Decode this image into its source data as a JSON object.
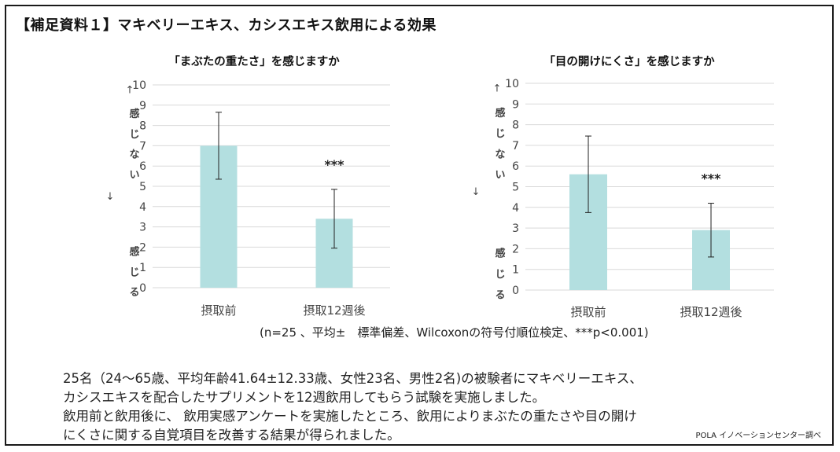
{
  "title": "【補足資料１】マキベリーエキス、カシスエキス飲用による効果",
  "chart_data": [
    {
      "type": "bar",
      "title": "「まぶたの重たさ」を感じますか",
      "categories": [
        "摂取前",
        "摂取12週後"
      ],
      "values": [
        7.0,
        3.4
      ],
      "error": [
        1.65,
        1.45
      ],
      "significance": [
        "",
        "***"
      ],
      "ylim": [
        0,
        10
      ],
      "yticks": [
        "0",
        "1",
        "2",
        "3",
        "4",
        "5",
        "6",
        "7",
        "8",
        "9",
        "10"
      ],
      "ylabel_top": [
        "↑",
        "感",
        "じ",
        "な",
        "い",
        "↓"
      ],
      "ylabel_bottom": [
        "感",
        "じ",
        "る"
      ],
      "grid": true,
      "bar_color": "#b3dfe0"
    },
    {
      "type": "bar",
      "title": "「目の開けにくさ」を感じますか",
      "categories": [
        "摂取前",
        "摂取12週後"
      ],
      "values": [
        5.6,
        2.9
      ],
      "error": [
        1.85,
        1.3
      ],
      "significance": [
        "",
        "***"
      ],
      "ylim": [
        0,
        10
      ],
      "yticks": [
        "0",
        "1",
        "2",
        "3",
        "4",
        "5",
        "6",
        "7",
        "8",
        "9",
        "10"
      ],
      "ylabel_top": [
        "↑",
        "感",
        "じ",
        "な",
        "い",
        "↓"
      ],
      "ylabel_bottom": [
        "感",
        "じ",
        "る"
      ],
      "grid": true,
      "bar_color": "#b3dfe0"
    }
  ],
  "footnote": "(n=25 、平均±　標準偏差、Wilcoxonの符号付順位検定、***p<0.001)",
  "description": [
    "25名（24～65歳、平均年齢41.64±12.33歳、女性23名、男性2名)の被験者にマキベリーエキス、",
    "カシスエキスを配合したサプリメントを12週飲用してもらう試験を実施しました。",
    "飲用前と飲用後に、 飲用実感アンケートを実施したところ、飲用によりまぶたの重たさや目の開け",
    "にくさに関する自覚項目を改善する結果が得られました。"
  ],
  "credit": "POLA イノベーションセンター調べ"
}
